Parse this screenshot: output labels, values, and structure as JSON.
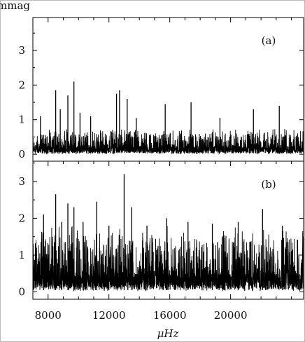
{
  "chart_data": {
    "type": "line",
    "ylabel": "mmag",
    "xlabel": "μHz",
    "xlim": [
      7000,
      24800
    ],
    "x_ticks": [
      8000,
      12000,
      16000,
      20000
    ],
    "x_minor_step": 1000,
    "grid": false,
    "legend": "none",
    "panels": [
      {
        "label": "(a)",
        "ylim": [
          -0.2,
          3.95
        ],
        "y_ticks": [
          0,
          1,
          2,
          3
        ],
        "noise_base": 0.22,
        "noise_spread": 0.38,
        "peaks": [
          {
            "x": 7500,
            "y": 1.1
          },
          {
            "x": 8500,
            "y": 1.85
          },
          {
            "x": 8800,
            "y": 1.3
          },
          {
            "x": 9300,
            "y": 1.7
          },
          {
            "x": 9700,
            "y": 2.1
          },
          {
            "x": 10100,
            "y": 1.2
          },
          {
            "x": 10800,
            "y": 1.1
          },
          {
            "x": 12500,
            "y": 1.75
          },
          {
            "x": 12700,
            "y": 1.85
          },
          {
            "x": 13200,
            "y": 1.6
          },
          {
            "x": 13800,
            "y": 1.05
          },
          {
            "x": 15700,
            "y": 1.45
          },
          {
            "x": 17400,
            "y": 1.5
          },
          {
            "x": 19300,
            "y": 1.05
          },
          {
            "x": 21500,
            "y": 1.3
          },
          {
            "x": 23200,
            "y": 1.4
          }
        ]
      },
      {
        "label": "(b)",
        "ylim": [
          -0.2,
          3.55
        ],
        "y_ticks": [
          0,
          1,
          2,
          3
        ],
        "noise_base": 0.45,
        "noise_spread": 0.95,
        "peaks": [
          {
            "x": 7700,
            "y": 2.1
          },
          {
            "x": 8500,
            "y": 2.65
          },
          {
            "x": 8900,
            "y": 1.9
          },
          {
            "x": 9300,
            "y": 2.4
          },
          {
            "x": 9700,
            "y": 2.3
          },
          {
            "x": 10300,
            "y": 1.9
          },
          {
            "x": 11200,
            "y": 2.45
          },
          {
            "x": 12000,
            "y": 1.8
          },
          {
            "x": 13000,
            "y": 3.2
          },
          {
            "x": 13500,
            "y": 2.3
          },
          {
            "x": 14500,
            "y": 1.8
          },
          {
            "x": 15800,
            "y": 2.0
          },
          {
            "x": 17200,
            "y": 1.9
          },
          {
            "x": 18800,
            "y": 1.85
          },
          {
            "x": 20500,
            "y": 1.9
          },
          {
            "x": 22100,
            "y": 2.25
          },
          {
            "x": 23400,
            "y": 1.8
          }
        ]
      }
    ]
  }
}
